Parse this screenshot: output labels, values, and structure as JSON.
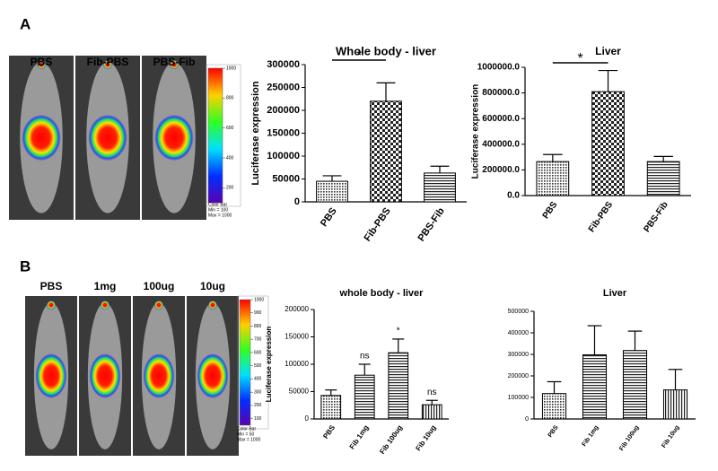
{
  "panels": [
    {
      "letter": "A",
      "image_labels": [
        "PBS",
        "Fib-PBS",
        "PBS-Fib"
      ],
      "colorbar": {
        "lim": [
          100,
          1000
        ],
        "ticks": [
          1000,
          800,
          600,
          400,
          200
        ],
        "caption": [
          "Color Bar",
          "Min = 100",
          "Max = 1000"
        ]
      }
    },
    {
      "letter": "B",
      "image_labels": [
        "PBS",
        "1mg",
        "100ug",
        "10ug"
      ],
      "colorbar": {
        "lim": [
          50,
          1000
        ],
        "ticks": [
          1000,
          900,
          800,
          700,
          600,
          500,
          400,
          300,
          200,
          100
        ],
        "caption": [
          "Color Bar",
          "Min = 50",
          "Max = 1000"
        ]
      }
    }
  ],
  "chart_data": [
    {
      "type": "bar",
      "title": "Whole body - liver",
      "y_label": "Luciferase expression",
      "categories": [
        "PBS",
        "Fib-PBS",
        "PBS-Fib"
      ],
      "values": [
        45000,
        220000,
        63000
      ],
      "errors": [
        12000,
        40000,
        15000
      ],
      "patterns": [
        "dots",
        "checker",
        "hlines"
      ],
      "annotations": [
        {
          "text": "*"
        }
      ],
      "ylim": [
        0,
        300000
      ],
      "yticks": [
        0,
        50000,
        100000,
        150000,
        200000,
        250000,
        300000
      ]
    },
    {
      "type": "bar",
      "title": "Liver",
      "y_label": "Luciferase expression",
      "categories": [
        "PBS",
        "Fib-PBS",
        "PBS-Fib"
      ],
      "values": [
        265000,
        810000,
        265000
      ],
      "errors": [
        55000,
        165000,
        40000
      ],
      "patterns": [
        "dots",
        "checker",
        "hlines"
      ],
      "annotations": [
        {
          "text": "*"
        }
      ],
      "ylim": [
        0,
        1000000
      ],
      "yticks": [
        {
          "value": 0,
          "label": "0.0"
        },
        {
          "value": 200000,
          "label": "200000.0"
        },
        {
          "value": 400000,
          "label": "400000.0"
        },
        {
          "value": 600000,
          "label": "600000.0"
        },
        {
          "value": 800000,
          "label": "800000.0"
        },
        {
          "value": 1000000,
          "label": "1000000.0"
        }
      ]
    },
    {
      "type": "bar",
      "title": "whole body - liver",
      "y_label": "Luciferase expression",
      "categories": [
        "PBS",
        "Fib 1mg",
        "Fib 100ug",
        "Fib 10ug"
      ],
      "values": [
        43000,
        80000,
        121000,
        26000
      ],
      "errors": [
        10000,
        20000,
        25000,
        8000
      ],
      "patterns": [
        "dots",
        "hlines",
        "hlines",
        "vlines"
      ],
      "bar_labels": [
        null,
        "ns",
        "*",
        "ns"
      ],
      "ylim": [
        0,
        200000
      ],
      "yticks": [
        0,
        50000,
        100000,
        150000,
        200000
      ]
    },
    {
      "type": "bar",
      "title": "Liver",
      "categories": [
        "PBS",
        "Fib 1mg",
        "Fib 100ug",
        "Fib 10ug"
      ],
      "values": [
        118000,
        298000,
        318000,
        135000
      ],
      "errors": [
        55000,
        135000,
        90000,
        95000
      ],
      "patterns": [
        "dots",
        "hlines",
        "hlines",
        "vlines"
      ],
      "ylim": [
        0,
        500000
      ],
      "yticks": [
        0,
        100000,
        200000,
        300000,
        400000,
        500000
      ]
    }
  ]
}
